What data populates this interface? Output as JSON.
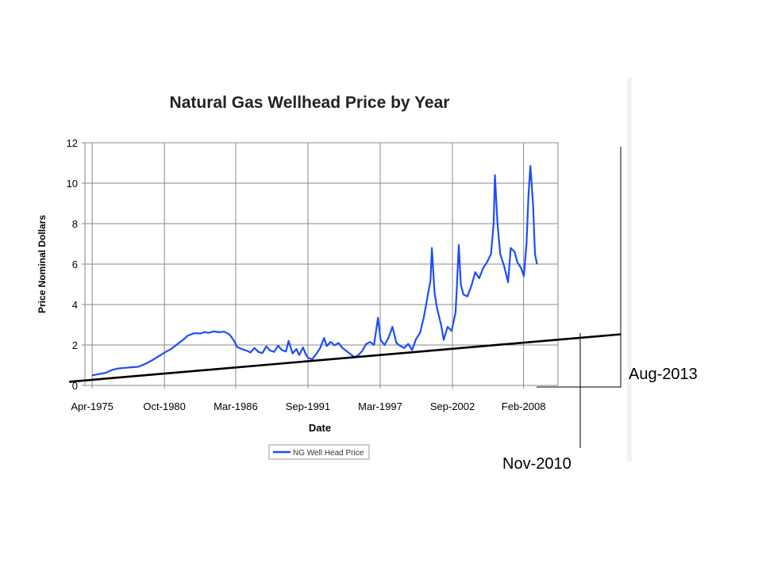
{
  "colors": {
    "series": "#1f4df7",
    "trendline": "#000000",
    "grid": "#8a8a8a",
    "axis_text": "#000000",
    "background": "#ffffff"
  },
  "chart_data": {
    "type": "line",
    "title": "Natural Gas Wellhead Price by Year",
    "xlabel": "Date",
    "ylabel": "Price Nominal Dollars",
    "x_unit": "decimal_year",
    "xlim": [
      1974.7,
      2010.7
    ],
    "ylim": [
      0,
      12
    ],
    "y_ticks": [
      0,
      2,
      4,
      6,
      8,
      10,
      12
    ],
    "x_ticks": [
      {
        "label": "Apr-1975",
        "x": 1975.25
      },
      {
        "label": "Oct-1980",
        "x": 1980.75
      },
      {
        "label": "Mar-1986",
        "x": 1986.17
      },
      {
        "label": "Sep-1991",
        "x": 1991.67
      },
      {
        "label": "Mar-1997",
        "x": 1997.17
      },
      {
        "label": "Sep-2002",
        "x": 2002.67
      },
      {
        "label": "Feb-2008",
        "x": 2008.08
      }
    ],
    "grid": true,
    "legend": {
      "position": "bottom-center",
      "entries": [
        "NG Well Head Price"
      ]
    },
    "series": [
      {
        "name": "NG Well Head Price",
        "points": [
          [
            1975.25,
            0.5
          ],
          [
            1975.75,
            0.56
          ],
          [
            1976.25,
            0.62
          ],
          [
            1976.75,
            0.76
          ],
          [
            1977.25,
            0.84
          ],
          [
            1977.75,
            0.87
          ],
          [
            1978.25,
            0.9
          ],
          [
            1978.75,
            0.92
          ],
          [
            1979.25,
            1.05
          ],
          [
            1979.75,
            1.22
          ],
          [
            1980.25,
            1.42
          ],
          [
            1980.75,
            1.62
          ],
          [
            1981.25,
            1.8
          ],
          [
            1981.75,
            2.05
          ],
          [
            1982.25,
            2.3
          ],
          [
            1982.5,
            2.45
          ],
          [
            1983.0,
            2.58
          ],
          [
            1983.5,
            2.57
          ],
          [
            1983.8,
            2.64
          ],
          [
            1984.1,
            2.6
          ],
          [
            1984.5,
            2.67
          ],
          [
            1984.9,
            2.63
          ],
          [
            1985.3,
            2.66
          ],
          [
            1985.7,
            2.52
          ],
          [
            1986.0,
            2.25
          ],
          [
            1986.3,
            1.9
          ],
          [
            1986.7,
            1.78
          ],
          [
            1987.0,
            1.72
          ],
          [
            1987.3,
            1.63
          ],
          [
            1987.6,
            1.85
          ],
          [
            1987.9,
            1.66
          ],
          [
            1988.2,
            1.6
          ],
          [
            1988.5,
            1.93
          ],
          [
            1988.8,
            1.72
          ],
          [
            1989.1,
            1.66
          ],
          [
            1989.4,
            1.96
          ],
          [
            1989.7,
            1.74
          ],
          [
            1990.0,
            1.68
          ],
          [
            1990.2,
            2.2
          ],
          [
            1990.5,
            1.58
          ],
          [
            1990.8,
            1.8
          ],
          [
            1991.0,
            1.5
          ],
          [
            1991.3,
            1.88
          ],
          [
            1991.5,
            1.55
          ],
          [
            1991.7,
            1.35
          ],
          [
            1992.0,
            1.3
          ],
          [
            1992.3,
            1.55
          ],
          [
            1992.6,
            1.85
          ],
          [
            1992.9,
            2.35
          ],
          [
            1993.1,
            1.95
          ],
          [
            1993.4,
            2.15
          ],
          [
            1993.7,
            1.98
          ],
          [
            1994.0,
            2.1
          ],
          [
            1994.3,
            1.85
          ],
          [
            1994.6,
            1.7
          ],
          [
            1994.9,
            1.55
          ],
          [
            1995.2,
            1.4
          ],
          [
            1995.5,
            1.5
          ],
          [
            1995.8,
            1.7
          ],
          [
            1996.1,
            2.05
          ],
          [
            1996.4,
            2.15
          ],
          [
            1996.7,
            2.0
          ],
          [
            1997.0,
            3.35
          ],
          [
            1997.2,
            2.25
          ],
          [
            1997.5,
            2.0
          ],
          [
            1997.8,
            2.35
          ],
          [
            1998.1,
            2.9
          ],
          [
            1998.4,
            2.1
          ],
          [
            1998.7,
            1.95
          ],
          [
            1999.0,
            1.85
          ],
          [
            1999.3,
            2.05
          ],
          [
            1999.6,
            1.75
          ],
          [
            1999.9,
            2.3
          ],
          [
            2000.2,
            2.6
          ],
          [
            2000.5,
            3.4
          ],
          [
            2000.8,
            4.5
          ],
          [
            2001.0,
            5.2
          ],
          [
            2001.1,
            6.8
          ],
          [
            2001.3,
            4.6
          ],
          [
            2001.5,
            3.8
          ],
          [
            2001.8,
            3.0
          ],
          [
            2002.0,
            2.25
          ],
          [
            2002.3,
            2.9
          ],
          [
            2002.6,
            2.7
          ],
          [
            2002.9,
            3.6
          ],
          [
            2003.0,
            4.8
          ],
          [
            2003.15,
            6.95
          ],
          [
            2003.3,
            5.0
          ],
          [
            2003.5,
            4.5
          ],
          [
            2003.8,
            4.4
          ],
          [
            2004.1,
            4.9
          ],
          [
            2004.4,
            5.6
          ],
          [
            2004.7,
            5.3
          ],
          [
            2005.0,
            5.8
          ],
          [
            2005.3,
            6.1
          ],
          [
            2005.6,
            6.5
          ],
          [
            2005.8,
            8.0
          ],
          [
            2005.9,
            10.4
          ],
          [
            2006.1,
            8.0
          ],
          [
            2006.3,
            6.5
          ],
          [
            2006.6,
            5.9
          ],
          [
            2006.9,
            5.1
          ],
          [
            2007.1,
            6.8
          ],
          [
            2007.4,
            6.6
          ],
          [
            2007.6,
            6.1
          ],
          [
            2007.9,
            5.8
          ],
          [
            2008.1,
            5.4
          ],
          [
            2008.3,
            7.0
          ],
          [
            2008.45,
            9.4
          ],
          [
            2008.6,
            10.85
          ],
          [
            2008.8,
            9.0
          ],
          [
            2008.95,
            6.5
          ],
          [
            2009.1,
            6.0
          ]
        ]
      }
    ],
    "annotations": [
      {
        "type": "trendline",
        "from": [
          1973.5,
          0.18
        ],
        "to": [
          2015.5,
          2.53
        ]
      },
      {
        "type": "bracket",
        "label": "Aug-2013"
      },
      {
        "type": "vline",
        "label": "Nov-2010"
      }
    ]
  }
}
